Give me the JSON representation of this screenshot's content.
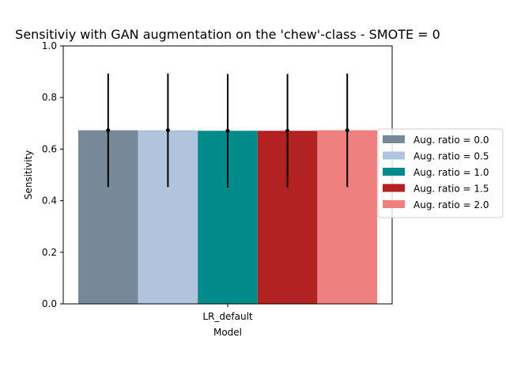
{
  "chart_data": {
    "type": "bar",
    "title": "Sensitiviy with GAN augmentation on the 'chew'-class - SMOTE = 0",
    "xlabel": "Model",
    "ylabel": "Sensitivity",
    "categories": [
      "LR_default"
    ],
    "ylim": [
      0,
      1.0
    ],
    "yticks": [
      "0.0",
      "0.2",
      "0.4",
      "0.6",
      "0.8",
      "1.0"
    ],
    "grid": false,
    "legend_position": "center-right",
    "series": [
      {
        "name": "Aug. ratio = 0.0",
        "values": [
          0.673
        ],
        "error": [
          0.22
        ],
        "color": "#778899"
      },
      {
        "name": "Aug. ratio = 0.5",
        "values": [
          0.673
        ],
        "error": [
          0.22
        ],
        "color": "#b0c4de"
      },
      {
        "name": "Aug. ratio = 1.0",
        "values": [
          0.671
        ],
        "error": [
          0.22
        ],
        "color": "#008b8b"
      },
      {
        "name": "Aug. ratio = 1.5",
        "values": [
          0.671
        ],
        "error": [
          0.22
        ],
        "color": "#b22222"
      },
      {
        "name": "Aug. ratio = 2.0",
        "values": [
          0.673
        ],
        "error": [
          0.22
        ],
        "color": "#f08080"
      }
    ]
  }
}
